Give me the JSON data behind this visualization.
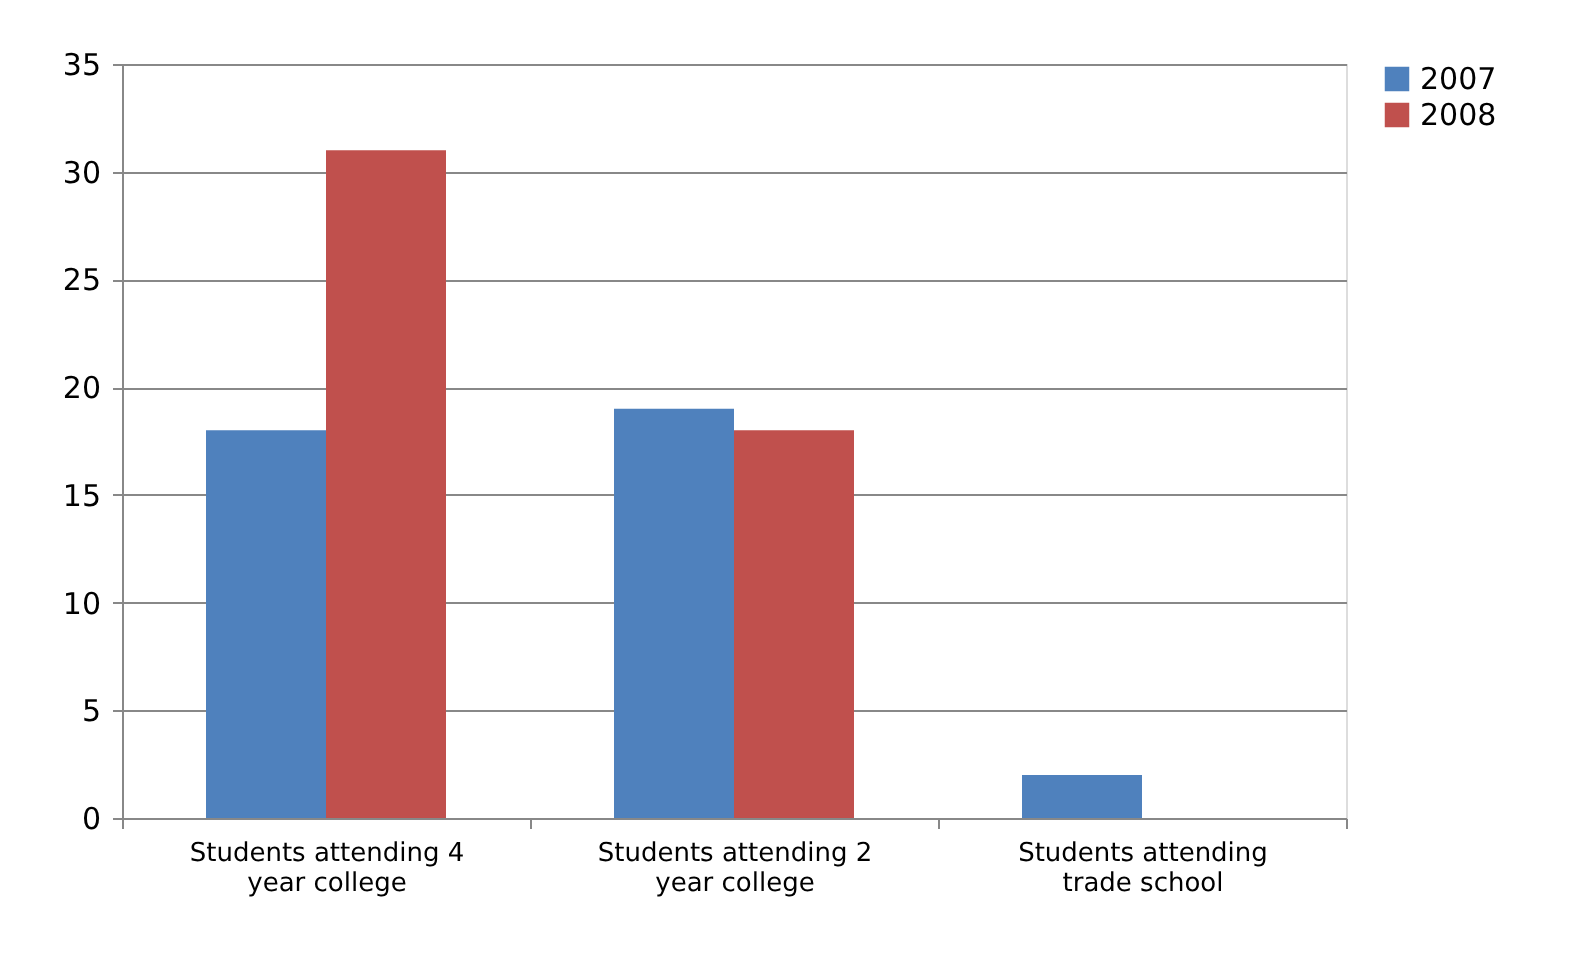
{
  "chart_data": {
    "type": "bar",
    "categories": [
      "Students attending 4 year college",
      "Students attending 2 year college",
      "Students attending trade school"
    ],
    "series": [
      {
        "name": "2007",
        "color": "#4f81bd",
        "values": [
          18,
          19,
          2
        ]
      },
      {
        "name": "2008",
        "color": "#c0504d",
        "values": [
          31,
          18,
          0
        ]
      }
    ],
    "ylim": [
      0,
      35
    ],
    "yticks": [
      0,
      5,
      10,
      15,
      20,
      25,
      30,
      35
    ],
    "grid": "y",
    "legend": "right"
  }
}
